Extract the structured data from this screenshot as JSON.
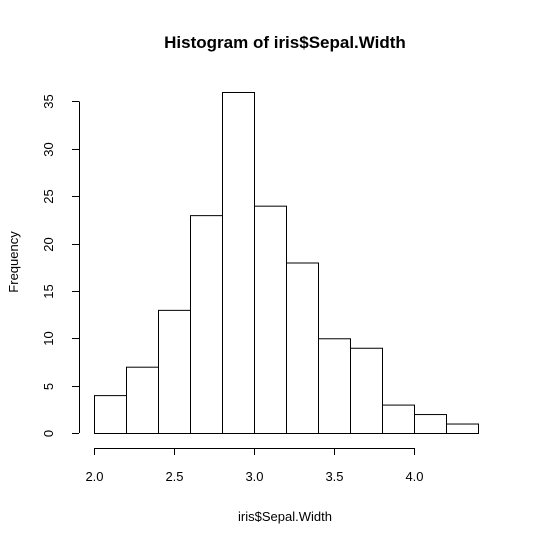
{
  "chart_data": {
    "type": "bar",
    "title": "Histogram of iris$Sepal.Width",
    "xlabel": "iris$Sepal.Width",
    "ylabel": "Frequency",
    "bins": [
      {
        "start": 2.0,
        "end": 2.2,
        "count": 4
      },
      {
        "start": 2.2,
        "end": 2.4,
        "count": 7
      },
      {
        "start": 2.4,
        "end": 2.6,
        "count": 13
      },
      {
        "start": 2.6,
        "end": 2.8,
        "count": 23
      },
      {
        "start": 2.8,
        "end": 3.0,
        "count": 36
      },
      {
        "start": 3.0,
        "end": 3.2,
        "count": 24
      },
      {
        "start": 3.2,
        "end": 3.4,
        "count": 18
      },
      {
        "start": 3.4,
        "end": 3.6,
        "count": 10
      },
      {
        "start": 3.6,
        "end": 3.8,
        "count": 9
      },
      {
        "start": 3.8,
        "end": 4.0,
        "count": 3
      },
      {
        "start": 4.0,
        "end": 4.2,
        "count": 2
      },
      {
        "start": 4.2,
        "end": 4.4,
        "count": 1
      }
    ],
    "x_ticks": [
      2.0,
      2.5,
      3.0,
      3.5,
      4.0
    ],
    "x_tick_labels": [
      "2.0",
      "2.5",
      "3.0",
      "3.5",
      "4.0"
    ],
    "y_ticks": [
      0,
      5,
      10,
      15,
      20,
      25,
      30,
      35
    ],
    "y_tick_labels": [
      "0",
      "5",
      "10",
      "15",
      "20",
      "25",
      "30",
      "35"
    ],
    "xlim": [
      2.0,
      4.4
    ],
    "ylim": [
      0,
      36
    ],
    "grid": false,
    "bar_fill": "#ffffff",
    "bar_stroke": "#000000"
  }
}
